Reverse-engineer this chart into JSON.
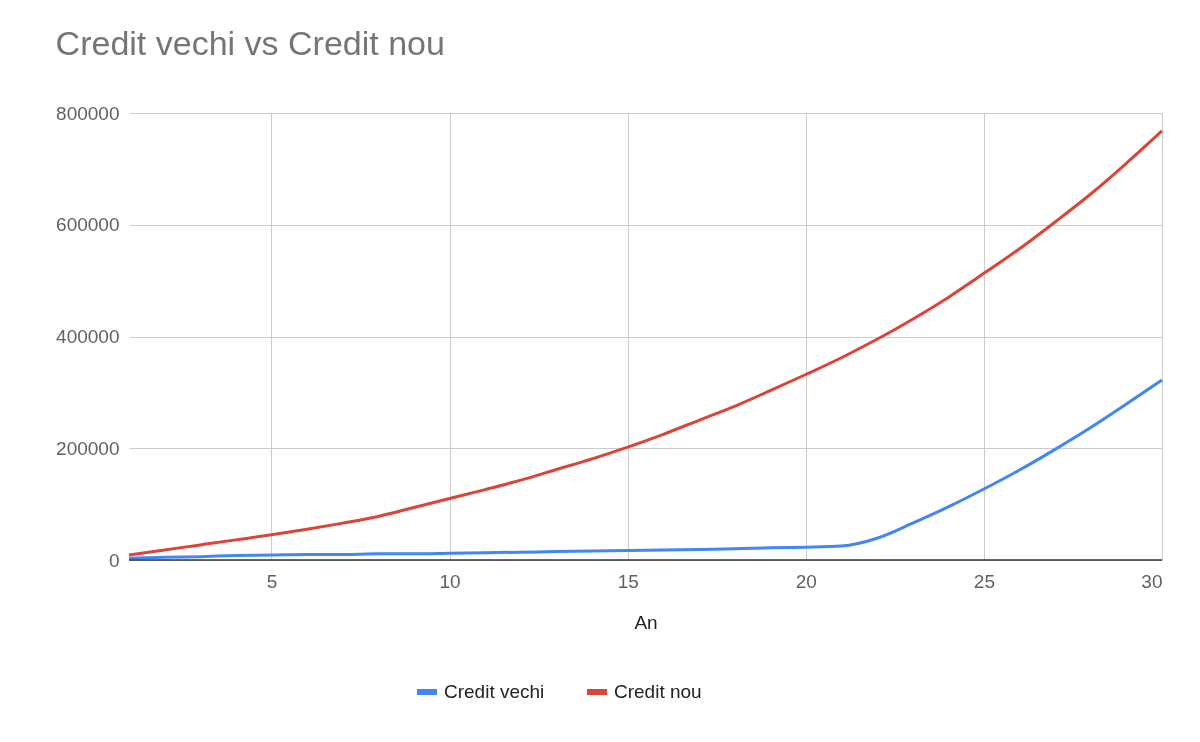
{
  "chart_data": {
    "type": "line",
    "title": "Credit vechi vs Credit nou",
    "xlabel": "An",
    "x": [
      1,
      2,
      3,
      4,
      5,
      6,
      7,
      8,
      9,
      10,
      11,
      12,
      13,
      14,
      15,
      16,
      17,
      18,
      19,
      20,
      21,
      22,
      23,
      24,
      25,
      26,
      27,
      28,
      29,
      30
    ],
    "series": [
      {
        "name": "Credit vechi",
        "color": "#4285f4",
        "values": [
          3000,
          5000,
          6000,
          8000,
          9000,
          10000,
          10000,
          11000,
          11000,
          12000,
          13000,
          14000,
          15000,
          16000,
          17000,
          18000,
          19000,
          20000,
          22000,
          23000,
          25000,
          39000,
          66000,
          95000,
          127000,
          161000,
          198000,
          237000,
          279000,
          322000
        ]
      },
      {
        "name": "Credit nou",
        "color": "#db4437",
        "values": [
          9000,
          18000,
          27000,
          36000,
          45000,
          55000,
          66000,
          78000,
          94000,
          110000,
          126000,
          143000,
          162000,
          181000,
          202000,
          225000,
          250000,
          275000,
          303000,
          332000,
          362000,
          395000,
          431000,
          470000,
          513000,
          557000,
          605000,
          655000,
          710000,
          768000
        ]
      }
    ],
    "xlim": [
      1,
      30
    ],
    "xticks": [
      5,
      10,
      15,
      20,
      25,
      30
    ],
    "ylim": [
      0,
      800000
    ],
    "yticks": [
      0,
      200000,
      400000,
      600000,
      800000
    ],
    "grid": true,
    "legend": "bottom",
    "marker": "none",
    "line_style": "solid"
  }
}
